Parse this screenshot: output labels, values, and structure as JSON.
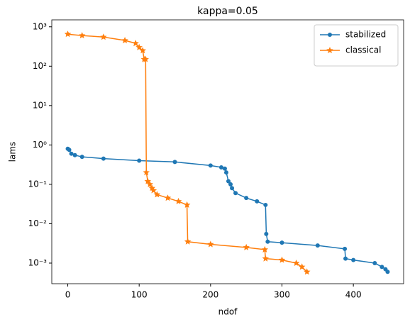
{
  "chart_data": {
    "type": "line",
    "title": "kappa=0.05",
    "x_label": "ndof",
    "y_label": "lams",
    "y_scale": "log",
    "legend": "upper right",
    "xlim": [
      -22.4,
      470.4
    ],
    "xticks": [
      0,
      100,
      200,
      300,
      400
    ],
    "ylim": [
      0.0003,
      1500
    ],
    "yticks": [
      {
        "value": 0.001,
        "label": "10⁻³"
      },
      {
        "value": 0.01,
        "label": "10⁻²"
      },
      {
        "value": 0.1,
        "label": "10⁻¹"
      },
      {
        "value": 1,
        "label": "10⁰"
      },
      {
        "value": 10,
        "label": "10¹"
      },
      {
        "value": 100,
        "label": "10²"
      },
      {
        "value": 1000,
        "label": "10³"
      }
    ],
    "series": [
      {
        "name": "stabilized",
        "color": "#1f77b4",
        "marker": "circle",
        "x": [
          0,
          2,
          5,
          10,
          20,
          50,
          100,
          150,
          200,
          215,
          220,
          222,
          225,
          228,
          230,
          235,
          250,
          265,
          277,
          278,
          280,
          300,
          350,
          388,
          389,
          400,
          430,
          440,
          445,
          448
        ],
        "values": [
          0.8,
          0.75,
          0.6,
          0.55,
          0.5,
          0.45,
          0.4,
          0.37,
          0.3,
          0.27,
          0.25,
          0.2,
          0.12,
          0.1,
          0.08,
          0.06,
          0.045,
          0.037,
          0.03,
          0.0055,
          0.0035,
          0.0033,
          0.0028,
          0.0023,
          0.0013,
          0.0012,
          0.001,
          0.0008,
          0.0007,
          0.0006
        ]
      },
      {
        "name": "classical",
        "color": "#ff7f0e",
        "marker": "star",
        "x": [
          0,
          20,
          50,
          80,
          95,
          100,
          105,
          107,
          109,
          110,
          112,
          115,
          118,
          120,
          125,
          140,
          155,
          167,
          168,
          200,
          250,
          276,
          277,
          300,
          320,
          328,
          335
        ],
        "values": [
          650,
          600,
          550,
          450,
          380,
          300,
          250,
          150,
          150,
          0.2,
          0.12,
          0.1,
          0.08,
          0.07,
          0.055,
          0.045,
          0.037,
          0.03,
          0.0035,
          0.003,
          0.0025,
          0.0022,
          0.0013,
          0.0012,
          0.001,
          0.0008,
          0.0006
        ]
      }
    ]
  }
}
